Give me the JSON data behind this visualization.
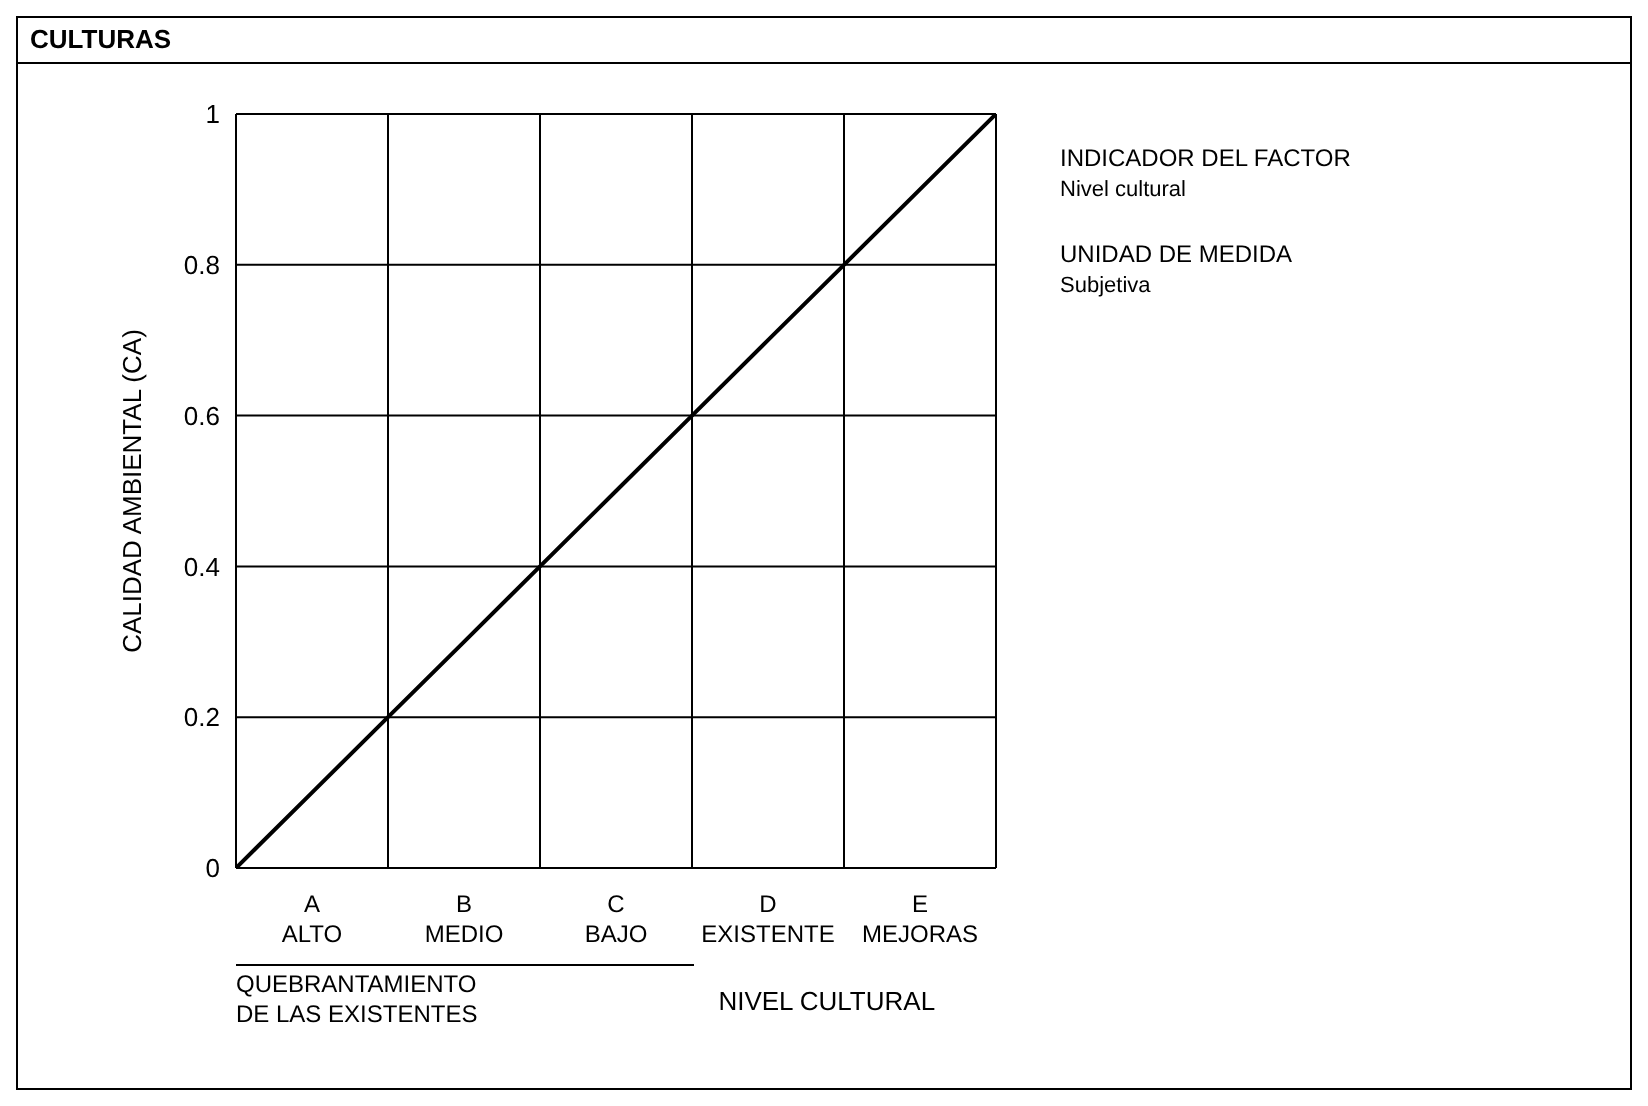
{
  "chart_data": {
    "type": "line",
    "title": "CULTURAS",
    "xlabel": "NIVEL CULTURAL",
    "ylabel": "CALIDAD AMBIENTAL (CA)",
    "categories": [
      null,
      "A\nALTO",
      null,
      "B\nMEDIO",
      null,
      "C\nBAJO",
      null,
      "D\nEXISTENTE",
      null,
      "E\nMEJORAS",
      null
    ],
    "series": [
      {
        "color": "#000000",
        "values": [
          0,
          0.1,
          0.2,
          0.3,
          0.4,
          0.5,
          0.6,
          0.7,
          0.8,
          0.9,
          1
        ]
      }
    ],
    "ylim": [
      0,
      1
    ],
    "yticks": [
      0,
      0.2,
      0.4,
      0.6,
      0.8,
      1
    ],
    "grid": true,
    "annotations": [
      "INDICADOR DEL FACTOR",
      "Nivel cultural",
      "UNIDAD DE MEDIDA",
      "Subjetiva",
      "QUEBRANTAMIENTO\nDE LAS EXISTENTES"
    ]
  }
}
